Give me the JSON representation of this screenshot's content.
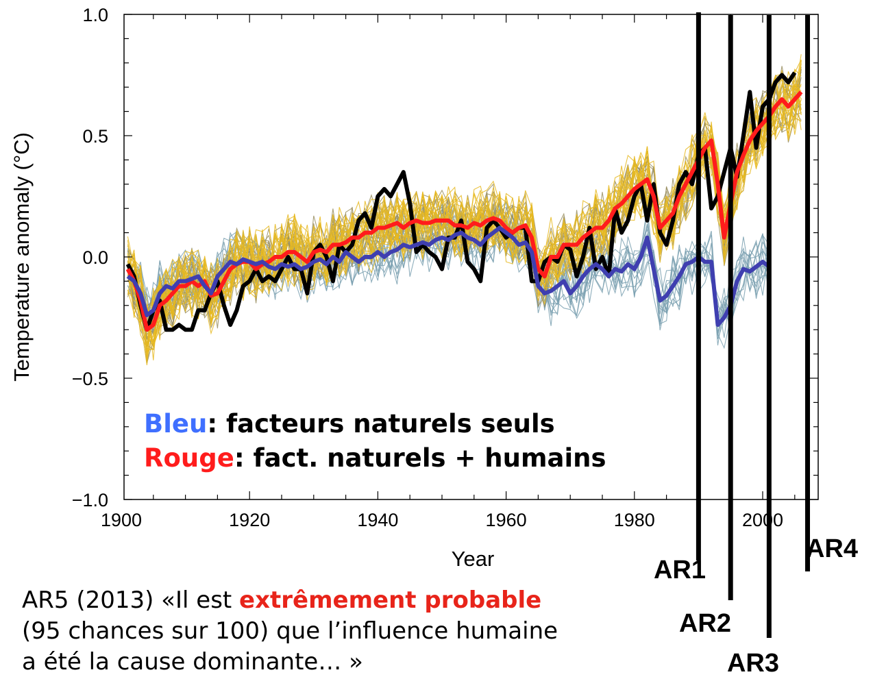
{
  "chart_data": {
    "type": "line",
    "xlabel": "Year",
    "ylabel": "Temperature anomaly (°C)",
    "xlim": [
      1900,
      2010
    ],
    "ylim": [
      -1.0,
      1.0
    ],
    "x_ticks": [
      "1900",
      "1920",
      "1940",
      "1960",
      "1980",
      "2000"
    ],
    "y_ticks": [
      "−1.0",
      "−0.5",
      "0.0",
      "0.5",
      "1.0"
    ],
    "series": [
      {
        "color": "#000000",
        "x": [
          1901,
          1902,
          1903,
          1904,
          1905,
          1906,
          1907,
          1908,
          1909,
          1910,
          1911,
          1912,
          1913,
          1914,
          1915,
          1916,
          1917,
          1918,
          1919,
          1920,
          1921,
          1922,
          1923,
          1924,
          1925,
          1926,
          1927,
          1928,
          1929,
          1930,
          1931,
          1932,
          1933,
          1934,
          1935,
          1936,
          1937,
          1938,
          1939,
          1940,
          1941,
          1942,
          1943,
          1944,
          1945,
          1946,
          1947,
          1948,
          1949,
          1950,
          1951,
          1952,
          1953,
          1954,
          1955,
          1956,
          1957,
          1958,
          1959,
          1960,
          1961,
          1962,
          1963,
          1964,
          1965,
          1966,
          1967,
          1968,
          1969,
          1970,
          1971,
          1972,
          1973,
          1974,
          1975,
          1976,
          1977,
          1978,
          1979,
          1980,
          1981,
          1982,
          1983,
          1984,
          1985,
          1986,
          1987,
          1988,
          1989,
          1990,
          1991,
          1992,
          1993,
          1994,
          1995,
          1996,
          1997,
          1998,
          1999,
          2000,
          2001,
          2002,
          2003,
          2004,
          2005
        ],
        "y": [
          -0.03,
          -0.08,
          -0.2,
          -0.3,
          -0.22,
          -0.18,
          -0.3,
          -0.3,
          -0.28,
          -0.3,
          -0.3,
          -0.22,
          -0.22,
          -0.15,
          -0.1,
          -0.2,
          -0.28,
          -0.22,
          -0.12,
          -0.1,
          -0.05,
          -0.1,
          -0.08,
          -0.1,
          -0.05,
          0.0,
          -0.05,
          -0.05,
          -0.15,
          0.02,
          0.05,
          0.0,
          -0.1,
          0.05,
          0.02,
          0.05,
          0.15,
          0.18,
          0.12,
          0.25,
          0.28,
          0.25,
          0.3,
          0.35,
          0.22,
          0.02,
          0.05,
          0.02,
          0.0,
          -0.05,
          0.08,
          0.08,
          0.15,
          -0.02,
          -0.05,
          -0.1,
          0.12,
          0.15,
          0.12,
          0.08,
          0.1,
          0.12,
          0.12,
          -0.1,
          -0.1,
          -0.02,
          0.0,
          -0.02,
          0.05,
          0.03,
          -0.08,
          0.0,
          0.12,
          -0.05,
          0.0,
          -0.08,
          0.2,
          0.1,
          0.15,
          0.25,
          0.3,
          0.15,
          0.3,
          0.1,
          0.05,
          0.15,
          0.3,
          0.35,
          0.3,
          0.42,
          0.45,
          0.2,
          0.25,
          0.35,
          0.45,
          0.33,
          0.5,
          0.68,
          0.45,
          0.62,
          0.65,
          0.72,
          0.75,
          0.72,
          0.76
        ]
      },
      {
        "color": "#ff1c1c",
        "x": [
          1901,
          1902,
          1903,
          1904,
          1905,
          1906,
          1907,
          1908,
          1909,
          1910,
          1911,
          1912,
          1913,
          1914,
          1915,
          1916,
          1917,
          1918,
          1919,
          1920,
          1921,
          1922,
          1923,
          1924,
          1925,
          1926,
          1927,
          1928,
          1929,
          1930,
          1931,
          1932,
          1933,
          1934,
          1935,
          1936,
          1937,
          1938,
          1939,
          1940,
          1941,
          1942,
          1943,
          1944,
          1945,
          1946,
          1947,
          1948,
          1949,
          1950,
          1951,
          1952,
          1953,
          1954,
          1955,
          1956,
          1957,
          1958,
          1959,
          1960,
          1961,
          1962,
          1963,
          1964,
          1965,
          1966,
          1967,
          1968,
          1969,
          1970,
          1971,
          1972,
          1973,
          1974,
          1975,
          1976,
          1977,
          1978,
          1979,
          1980,
          1981,
          1982,
          1983,
          1984,
          1985,
          1986,
          1987,
          1988,
          1989,
          1990,
          1991,
          1992,
          1993,
          1994,
          1995,
          1996,
          1997,
          1998,
          1999,
          2000,
          2001,
          2002,
          2003,
          2004,
          2005,
          2006
        ],
        "y": [
          -0.05,
          -0.1,
          -0.18,
          -0.3,
          -0.28,
          -0.2,
          -0.18,
          -0.15,
          -0.12,
          -0.12,
          -0.1,
          -0.12,
          -0.1,
          -0.16,
          -0.15,
          -0.1,
          -0.05,
          -0.03,
          -0.02,
          -0.02,
          -0.05,
          -0.03,
          -0.02,
          0.0,
          0.0,
          0.02,
          0.02,
          0.0,
          -0.02,
          0.02,
          0.03,
          0.02,
          0.05,
          0.05,
          0.06,
          0.08,
          0.08,
          0.1,
          0.1,
          0.12,
          0.12,
          0.13,
          0.14,
          0.12,
          0.14,
          0.15,
          0.14,
          0.14,
          0.15,
          0.15,
          0.15,
          0.13,
          0.13,
          0.12,
          0.14,
          0.13,
          0.15,
          0.16,
          0.15,
          0.12,
          0.1,
          0.12,
          0.13,
          0.08,
          -0.05,
          -0.08,
          0.0,
          0.0,
          0.05,
          0.05,
          0.05,
          0.08,
          0.1,
          0.12,
          0.12,
          0.15,
          0.2,
          0.22,
          0.25,
          0.28,
          0.3,
          0.32,
          0.25,
          0.12,
          0.15,
          0.18,
          0.25,
          0.3,
          0.35,
          0.4,
          0.45,
          0.48,
          0.3,
          0.08,
          0.22,
          0.35,
          0.42,
          0.48,
          0.52,
          0.55,
          0.58,
          0.62,
          0.65,
          0.62,
          0.65,
          0.68
        ]
      },
      {
        "color": "#3f3fb0",
        "x": [
          1901,
          1902,
          1903,
          1904,
          1905,
          1906,
          1907,
          1908,
          1909,
          1910,
          1911,
          1912,
          1913,
          1914,
          1915,
          1916,
          1917,
          1918,
          1919,
          1920,
          1921,
          1922,
          1923,
          1924,
          1925,
          1926,
          1927,
          1928,
          1929,
          1930,
          1931,
          1932,
          1933,
          1934,
          1935,
          1936,
          1937,
          1938,
          1939,
          1940,
          1941,
          1942,
          1943,
          1944,
          1945,
          1946,
          1947,
          1948,
          1949,
          1950,
          1951,
          1952,
          1953,
          1954,
          1955,
          1956,
          1957,
          1958,
          1959,
          1960,
          1961,
          1962,
          1963,
          1964,
          1965,
          1966,
          1967,
          1968,
          1969,
          1970,
          1971,
          1972,
          1973,
          1974,
          1975,
          1976,
          1977,
          1978,
          1979,
          1980,
          1981,
          1982,
          1983,
          1984,
          1985,
          1986,
          1987,
          1988,
          1989,
          1990,
          1991,
          1992,
          1993,
          1994,
          1995,
          1996,
          1997,
          1998,
          1999,
          2000,
          2001
        ],
        "y": [
          -0.08,
          -0.1,
          -0.15,
          -0.24,
          -0.22,
          -0.15,
          -0.12,
          -0.13,
          -0.1,
          -0.1,
          -0.09,
          -0.08,
          -0.12,
          -0.15,
          -0.08,
          -0.05,
          -0.02,
          -0.03,
          -0.01,
          -0.02,
          -0.03,
          -0.02,
          -0.04,
          -0.05,
          -0.03,
          -0.04,
          -0.03,
          -0.05,
          -0.04,
          -0.02,
          -0.01,
          -0.03,
          0.0,
          -0.02,
          0.02,
          0.0,
          -0.02,
          0.0,
          0.0,
          0.02,
          0.0,
          0.02,
          0.03,
          0.05,
          0.04,
          0.05,
          0.06,
          0.05,
          0.07,
          0.08,
          0.07,
          0.09,
          0.1,
          0.08,
          0.07,
          0.05,
          0.08,
          0.1,
          0.12,
          0.1,
          0.08,
          0.05,
          0.06,
          0.02,
          -0.12,
          -0.15,
          -0.14,
          -0.12,
          -0.1,
          -0.15,
          -0.12,
          -0.08,
          -0.05,
          -0.03,
          -0.05,
          -0.08,
          -0.05,
          -0.06,
          -0.03,
          -0.05,
          0.0,
          0.08,
          -0.05,
          -0.18,
          -0.16,
          -0.12,
          -0.08,
          -0.03,
          -0.02,
          0.0,
          -0.02,
          -0.02,
          -0.28,
          -0.25,
          -0.2,
          -0.1,
          -0.05,
          -0.06,
          -0.04,
          -0.02,
          -0.04
        ]
      }
    ]
  },
  "legend": {
    "line1_colored": "Bleu",
    "line1_rest": ": facteurs naturels seuls",
    "line2_colored": "Rouge",
    "line2_rest": ": fact. naturels + humains"
  },
  "markers": [
    {
      "label": "AR1",
      "year": 1990
    },
    {
      "label": "AR2",
      "year": 1995
    },
    {
      "label": "AR3",
      "year": 2001
    },
    {
      "label": "AR4",
      "year": 2007
    }
  ],
  "caption": {
    "prefix": "AR5 (2013) «Il est ",
    "highlight": "extrêmement probable",
    "line2": " (95 chances sur 100) que l’influence humaine",
    "line3": "a été la cause dominante… »"
  },
  "ensemble": {
    "yellow_color": "#e6b820",
    "olive_color": "#9a8f62",
    "teal_color": "#7aa0b0"
  }
}
